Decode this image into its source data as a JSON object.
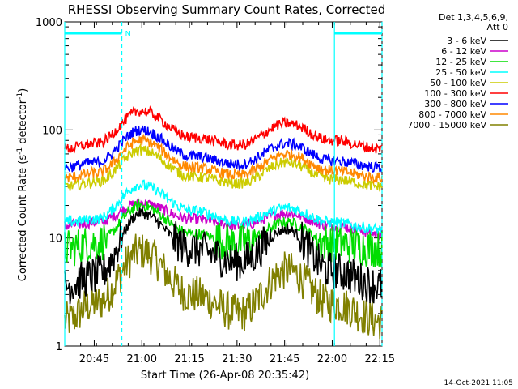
{
  "chart_data": {
    "type": "line",
    "title": "RHESSI Observing Summary Count Rates, Corrected",
    "xlabel": "Start Time (26-Apr-08 20:35:42)",
    "ylabel": "Corrected Count Rate (s",
    "ylabel_sup1": "-1",
    "ylabel_mid": " detector",
    "ylabel_sup2": "-1",
    "ylabel_end": ")",
    "y_scale": "log",
    "ylim": [
      1,
      1000
    ],
    "xlim_minutes": [
      0,
      100
    ],
    "x_ticks": [
      {
        "minute": 9.3,
        "label": "20:45"
      },
      {
        "minute": 24.3,
        "label": "21:00"
      },
      {
        "minute": 39.3,
        "label": "21:15"
      },
      {
        "minute": 54.3,
        "label": "21:30"
      },
      {
        "minute": 69.3,
        "label": "21:45"
      },
      {
        "minute": 84.3,
        "label": "22:00"
      },
      {
        "minute": 99.3,
        "label": "22:15"
      }
    ],
    "y_ticks": [
      {
        "value": 1,
        "label": "1"
      },
      {
        "value": 10,
        "label": "10"
      },
      {
        "value": 100,
        "label": "100"
      },
      {
        "value": 1000,
        "label": "1000"
      }
    ],
    "legend_header": [
      "Det 1,3,4,5,6,9,",
      "Att 0"
    ],
    "legend_position": "top-right",
    "series": [
      {
        "name": "3 - 6 keV",
        "color": "#000000",
        "base": 3.6,
        "peak1": 17,
        "peak2": 12,
        "x": [
          0,
          10,
          24,
          40,
          55,
          70,
          84,
          100
        ],
        "values": [
          3.6,
          4.5,
          17,
          8,
          6,
          12,
          5,
          3.6
        ]
      },
      {
        "name": "6 - 12 keV",
        "color": "#cc00cc",
        "base": 13,
        "peak1": 21,
        "peak2": 17,
        "x": [
          0,
          10,
          24,
          40,
          55,
          70,
          84,
          100
        ],
        "values": [
          13,
          14,
          21,
          15,
          13,
          17,
          13,
          11
        ]
      },
      {
        "name": "12 - 25 keV",
        "color": "#00dd00",
        "base": 8,
        "peak1": 20,
        "peak2": 14,
        "x": [
          0,
          10,
          24,
          40,
          55,
          70,
          84,
          100
        ],
        "values": [
          8,
          9,
          20,
          11,
          9,
          14,
          9,
          8
        ]
      },
      {
        "name": "25 - 50 keV",
        "color": "#00ffff",
        "base": 14,
        "peak1": 31,
        "peak2": 19,
        "x": [
          0,
          10,
          24,
          40,
          55,
          70,
          84,
          100
        ],
        "values": [
          14,
          15,
          31,
          18,
          14,
          19,
          14,
          12
        ]
      },
      {
        "name": "50 - 100 keV",
        "color": "#cccc00",
        "base": 30,
        "peak1": 65,
        "peak2": 50,
        "x": [
          0,
          10,
          24,
          40,
          55,
          70,
          84,
          100
        ],
        "values": [
          30,
          33,
          65,
          37,
          32,
          50,
          35,
          30
        ]
      },
      {
        "name": "100 - 300 keV",
        "color": "#ff0000",
        "base": 67,
        "peak1": 150,
        "peak2": 115,
        "x": [
          0,
          10,
          24,
          40,
          55,
          70,
          84,
          100
        ],
        "values": [
          67,
          75,
          150,
          85,
          72,
          115,
          80,
          67
        ]
      },
      {
        "name": "300 - 800 keV",
        "color": "#0000ff",
        "base": 45,
        "peak1": 100,
        "peak2": 75,
        "x": [
          0,
          10,
          24,
          40,
          55,
          70,
          84,
          100
        ],
        "values": [
          45,
          50,
          100,
          57,
          48,
          75,
          52,
          45
        ]
      },
      {
        "name": "800 - 7000 keV",
        "color": "#ff8800",
        "base": 36,
        "peak1": 80,
        "peak2": 60,
        "x": [
          0,
          10,
          24,
          40,
          55,
          70,
          84,
          100
        ],
        "values": [
          36,
          40,
          80,
          45,
          38,
          60,
          42,
          36
        ]
      },
      {
        "name": "7000 - 15000 keV",
        "color": "#808000",
        "base": 1.7,
        "peak1": 7.5,
        "peak2": 5,
        "x": [
          0,
          10,
          24,
          40,
          55,
          70,
          84,
          100
        ],
        "values": [
          1.7,
          2.5,
          7.5,
          3,
          2,
          5,
          2.5,
          1.7
        ]
      }
    ],
    "attenuator_bars": [
      {
        "start_minute": 0,
        "end_minute": 18,
        "label": "N"
      },
      {
        "start_minute": 85,
        "end_minute": 100,
        "label": ""
      }
    ],
    "vertical_markers_minutes": [
      0,
      18,
      85,
      100
    ],
    "footer_date": "14-Oct-2021 11:05"
  }
}
